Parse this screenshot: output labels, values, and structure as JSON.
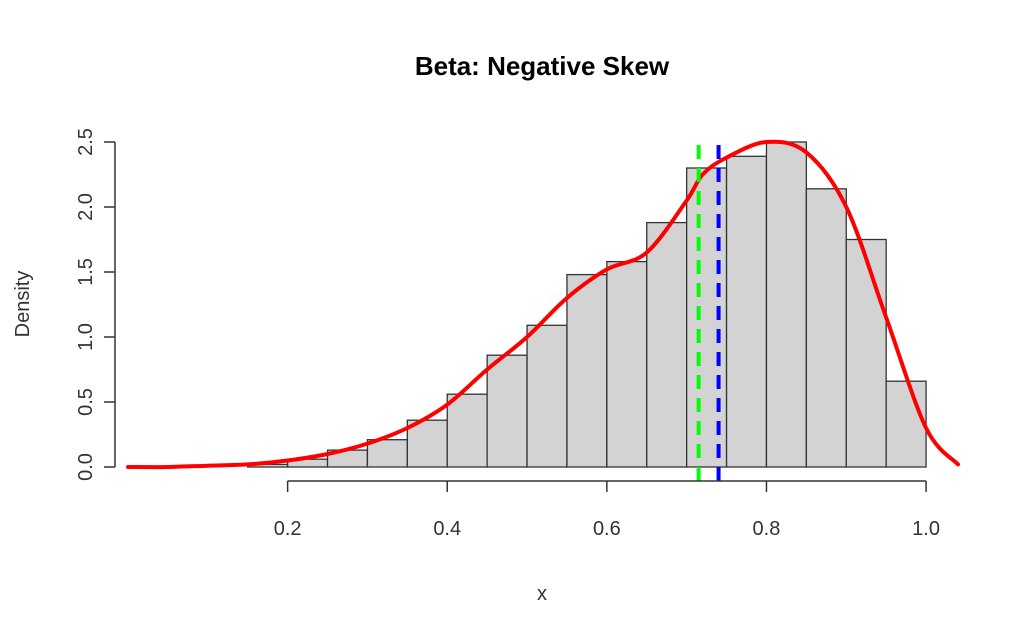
{
  "chart_data": {
    "type": "bar",
    "title": "Beta: Negative Skew",
    "xlabel": "x",
    "ylabel": "Density",
    "xlim": [
      0.0,
      1.04
    ],
    "ylim": [
      0,
      2.5
    ],
    "x_ticks": [
      0.2,
      0.4,
      0.6,
      0.8,
      1.0
    ],
    "x_tick_labels": [
      "0.2",
      "0.4",
      "0.6",
      "0.8",
      "1.0"
    ],
    "y_ticks": [
      0.0,
      0.5,
      1.0,
      1.5,
      2.0,
      2.5
    ],
    "y_tick_labels": [
      "0.0",
      "0.5",
      "1.0",
      "1.5",
      "2.0",
      "2.5"
    ],
    "bin_width": 0.05,
    "bins_start": [
      0.15,
      0.2,
      0.25,
      0.3,
      0.35,
      0.4,
      0.45,
      0.5,
      0.55,
      0.6,
      0.65,
      0.7,
      0.75,
      0.8,
      0.85,
      0.9,
      0.95
    ],
    "values": [
      0.02,
      0.06,
      0.13,
      0.21,
      0.36,
      0.56,
      0.86,
      1.09,
      1.48,
      1.58,
      1.88,
      2.3,
      2.39,
      2.5,
      2.14,
      1.75,
      0.66
    ],
    "bar_color": "#d3d3d3",
    "density_curve": {
      "color": "#ff0000",
      "x": [
        0.0,
        0.05,
        0.1,
        0.15,
        0.2,
        0.25,
        0.3,
        0.35,
        0.4,
        0.45,
        0.5,
        0.55,
        0.6,
        0.65,
        0.7,
        0.72,
        0.75,
        0.8,
        0.85,
        0.9,
        0.95,
        1.0,
        1.04
      ],
      "y": [
        0.0,
        0.0,
        0.01,
        0.02,
        0.05,
        0.1,
        0.18,
        0.3,
        0.48,
        0.75,
        1.0,
        1.3,
        1.52,
        1.65,
        2.05,
        2.25,
        2.38,
        2.5,
        2.42,
        2.0,
        1.15,
        0.3,
        0.02
      ]
    },
    "vlines": [
      {
        "x": 0.715,
        "color": "#00ff00",
        "style": "dashed"
      },
      {
        "x": 0.74,
        "color": "#0000ff",
        "style": "dashed"
      }
    ],
    "grid": false,
    "legend": "none"
  }
}
